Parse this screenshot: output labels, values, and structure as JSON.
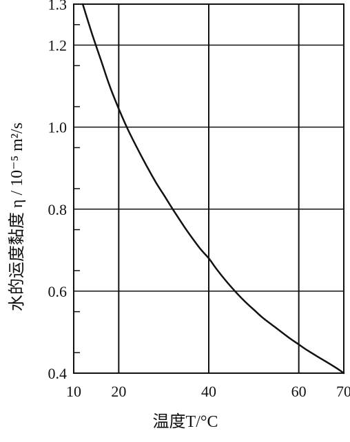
{
  "chart_data": {
    "type": "line",
    "xlabel": "温度T/°C",
    "ylabel": "水的运度黏度 η / 10⁻⁵ m²/s",
    "xlim": [
      10,
      70
    ],
    "ylim": [
      0.4,
      1.3
    ],
    "x_ticks": [
      10,
      20,
      40,
      60,
      70
    ],
    "x_tick_labels": [
      "10",
      "20",
      "40",
      "60",
      "70"
    ],
    "y_ticks": [
      0.4,
      0.6,
      0.8,
      1.0,
      1.2,
      1.3
    ],
    "y_tick_labels": [
      "0.4",
      "0.6",
      "0.8",
      "1.0",
      "1.2",
      "1.3"
    ],
    "grid": true,
    "series": [
      {
        "x": [
          12,
          14,
          16,
          18,
          20,
          22,
          25,
          28,
          30,
          32,
          35,
          38,
          40,
          42,
          45,
          48,
          50,
          52,
          55,
          58,
          60,
          62,
          65,
          68,
          70
        ],
        "y": [
          1.3,
          1.23,
          1.165,
          1.1,
          1.045,
          0.995,
          0.93,
          0.87,
          0.835,
          0.8,
          0.75,
          0.705,
          0.68,
          0.65,
          0.61,
          0.575,
          0.555,
          0.535,
          0.51,
          0.485,
          0.47,
          0.455,
          0.435,
          0.415,
          0.4
        ]
      }
    ]
  }
}
